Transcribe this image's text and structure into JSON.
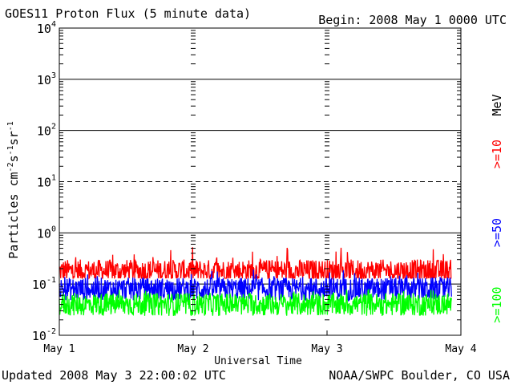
{
  "header": {
    "title": "GOES11 Proton Flux (5 minute data)",
    "begin": "Begin: 2008 May 1 0000 UTC"
  },
  "footer": {
    "updated": "Updated 2008 May  3 22:00:02 UTC",
    "credit": "NOAA/SWPC Boulder, CO USA"
  },
  "chart_data": {
    "type": "line",
    "title": "GOES11 Proton Flux (5 minute data)",
    "xlabel": "Universal Time",
    "ylabel": "Particles cm-2 s-1 sr-1",
    "y_scale": "log",
    "ylim": [
      0.01,
      10000
    ],
    "xlim": [
      "2008-05-01 00:00",
      "2008-05-04 00:00"
    ],
    "x_ticks": [
      "May 1",
      "May 2",
      "May 3",
      "May 4"
    ],
    "y_ticks": [
      {
        "base": "10",
        "exp": "-2"
      },
      {
        "base": "10",
        "exp": "-1"
      },
      {
        "base": "10",
        "exp": "0"
      },
      {
        "base": "10",
        "exp": "1"
      },
      {
        "base": "10",
        "exp": "2"
      },
      {
        "base": "10",
        "exp": "3"
      },
      {
        "base": "10",
        "exp": "4"
      }
    ],
    "threshold_lines": [
      {
        "value": 0.1,
        "style": "solid"
      },
      {
        "value": 1,
        "style": "solid"
      },
      {
        "value": 10,
        "style": "dashed"
      },
      {
        "value": 100,
        "style": "solid"
      },
      {
        "value": 1000,
        "style": "solid"
      }
    ],
    "unit_label": "MeV",
    "series": [
      {
        "name": ">=10",
        "color": "#ff0000",
        "typical": 0.18,
        "min": 0.13,
        "max": 0.55
      },
      {
        "name": ">=50",
        "color": "#0000ff",
        "typical": 0.08,
        "min": 0.045,
        "max": 0.2
      },
      {
        "name": ">=100",
        "color": "#00ff00",
        "typical": 0.04,
        "min": 0.022,
        "max": 0.08
      }
    ]
  }
}
